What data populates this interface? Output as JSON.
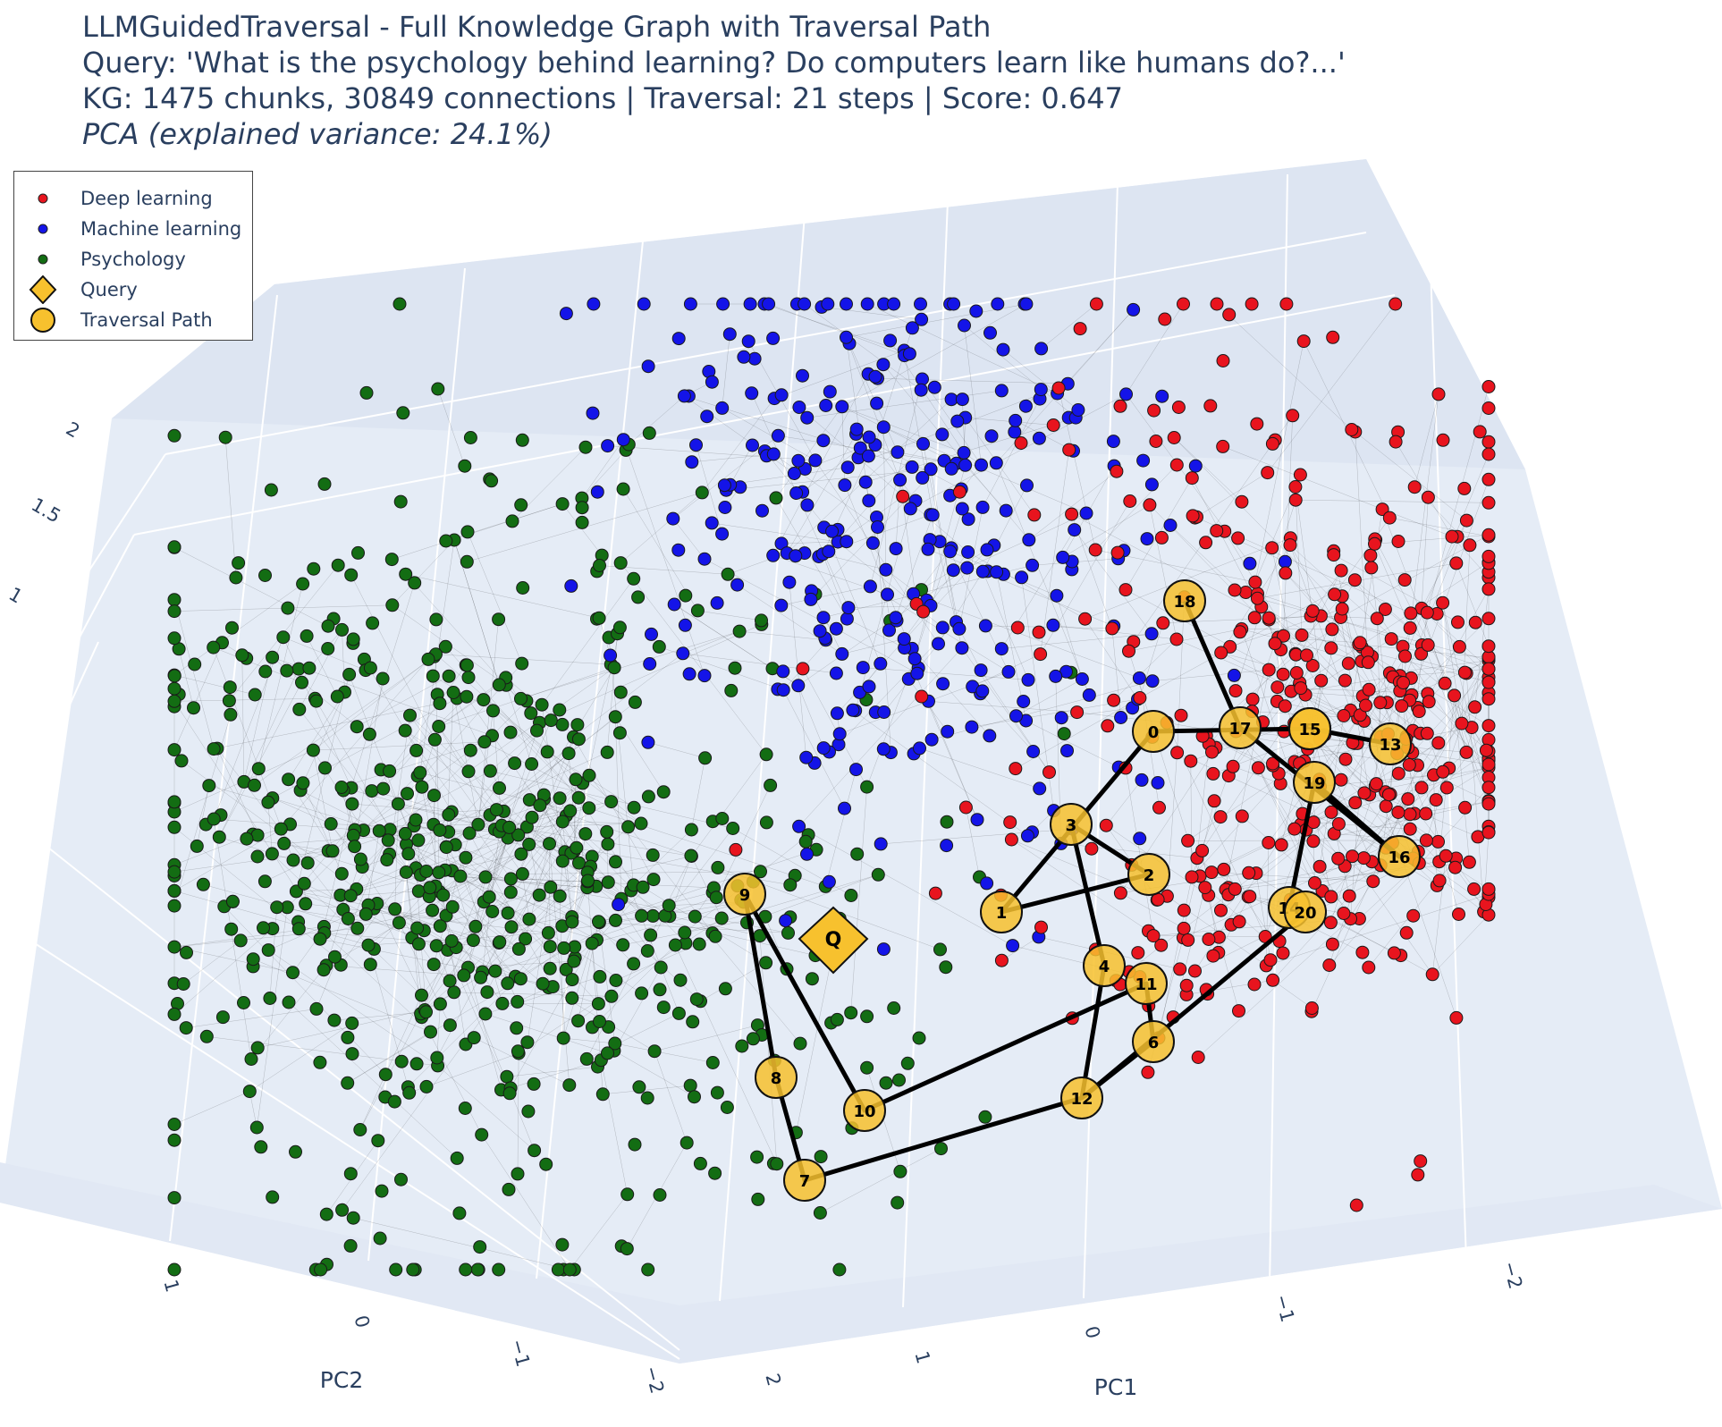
{
  "title_lines": [
    "LLMGuidedTraversal - Full Knowledge Graph with Traversal Path",
    "Query: 'What is the psychology behind learning? Do computers learn like humans do?...'",
    "KG: 1475 chunks, 30849 connections | Traversal: 21 steps | Score: 0.647",
    "PCA (explained variance: 24.1%)"
  ],
  "legend": [
    {
      "label": "Deep learning",
      "symbol": "circle-small",
      "color": "#e8141e"
    },
    {
      "label": "Machine learning",
      "symbol": "circle-small",
      "color": "#1414e8"
    },
    {
      "label": "Psychology",
      "symbol": "circle-small",
      "color": "#136d13"
    },
    {
      "label": "Query",
      "symbol": "diamond",
      "color": "#f7c12e"
    },
    {
      "label": "Traversal Path",
      "symbol": "circle-large",
      "color": "#f7c12e"
    }
  ],
  "chart_data": {
    "type": "scatter3d",
    "axes": {
      "x": {
        "label": "PC1",
        "ticks": [
          "2",
          "1",
          "0",
          "−1",
          "−2"
        ]
      },
      "y": {
        "label": "PC2",
        "ticks": [
          "1",
          "0",
          "−1",
          "−2"
        ]
      },
      "z": {
        "label": "",
        "ticks": [
          "1",
          "1.5",
          "2"
        ]
      }
    },
    "grid": true,
    "legend_position": "top-left",
    "totals": {
      "chunks": 1475,
      "connections": 30849,
      "traversal_steps": 21,
      "score": 0.647
    },
    "series": [
      {
        "name": "Deep learning",
        "color": "#e8141e",
        "pc1_range": [
          -2.2,
          0.2
        ],
        "pc2_range": [
          -1.5,
          1.0
        ],
        "count": 470
      },
      {
        "name": "Machine learning",
        "color": "#1414e8",
        "pc1_range": [
          -0.8,
          1.5
        ],
        "pc2_range": [
          -1.0,
          1.5
        ],
        "count": 330
      },
      {
        "name": "Psychology",
        "color": "#136d13",
        "pc1_range": [
          1.5,
          3.0
        ],
        "pc2_range": [
          -2.0,
          1.0
        ],
        "count": 675
      }
    ],
    "query_marker": {
      "label": "Q"
    },
    "traversal_path": [
      "0",
      "1",
      "2",
      "3",
      "4",
      "5",
      "6",
      "7",
      "8",
      "9",
      "10",
      "11",
      "12",
      "13",
      "14",
      "15",
      "16",
      "17",
      "18",
      "19",
      "20"
    ]
  }
}
